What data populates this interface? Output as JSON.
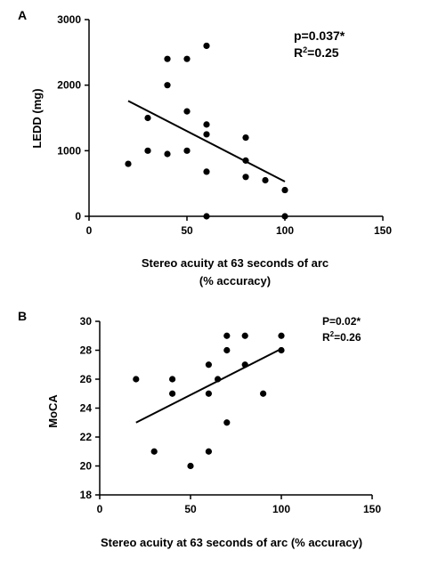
{
  "chart_data": [
    {
      "type": "scatter",
      "panel_label": "A",
      "xlabel_lines": [
        "Stereo acuity at 63 seconds of arc",
        "(% accuracy)"
      ],
      "ylabel": "LEDD (mg)",
      "xlim": [
        0,
        150
      ],
      "ylim": [
        0,
        3000
      ],
      "xticks": [
        0,
        50,
        100,
        150
      ],
      "yticks": [
        0,
        1000,
        2000,
        3000
      ],
      "annotations": {
        "p_value": "p=0.037*",
        "r2_prefix": "R",
        "r2_sup": "2",
        "r2_value": "=0.25"
      },
      "points": [
        {
          "x": 20,
          "y": 800
        },
        {
          "x": 30,
          "y": 1500
        },
        {
          "x": 30,
          "y": 1000
        },
        {
          "x": 40,
          "y": 2400
        },
        {
          "x": 40,
          "y": 2000
        },
        {
          "x": 40,
          "y": 950
        },
        {
          "x": 50,
          "y": 2400
        },
        {
          "x": 50,
          "y": 1600
        },
        {
          "x": 50,
          "y": 1000
        },
        {
          "x": 60,
          "y": 2600
        },
        {
          "x": 60,
          "y": 1400
        },
        {
          "x": 60,
          "y": 1250
        },
        {
          "x": 60,
          "y": 680
        },
        {
          "x": 60,
          "y": 0
        },
        {
          "x": 80,
          "y": 1200
        },
        {
          "x": 80,
          "y": 850
        },
        {
          "x": 80,
          "y": 600
        },
        {
          "x": 90,
          "y": 550
        },
        {
          "x": 100,
          "y": 400
        },
        {
          "x": 100,
          "y": 0
        }
      ],
      "fit_line": {
        "x": [
          20,
          100
        ],
        "y": [
          1760,
          530
        ]
      }
    },
    {
      "type": "scatter",
      "panel_label": "B",
      "xlabel_lines": [
        "Stereo acuity at 63 seconds of arc (% accuracy)"
      ],
      "ylabel": "MoCA",
      "xlim": [
        0,
        150
      ],
      "ylim": [
        18,
        30
      ],
      "xticks": [
        0,
        50,
        100,
        150
      ],
      "yticks": [
        18,
        20,
        22,
        24,
        26,
        28,
        30
      ],
      "annotations": {
        "p_value": "P=0.02*",
        "r2_prefix": "R",
        "r2_sup": "2",
        "r2_value": "=0.26"
      },
      "points": [
        {
          "x": 20,
          "y": 26
        },
        {
          "x": 30,
          "y": 21
        },
        {
          "x": 40,
          "y": 26
        },
        {
          "x": 40,
          "y": 25
        },
        {
          "x": 50,
          "y": 20
        },
        {
          "x": 60,
          "y": 27
        },
        {
          "x": 60,
          "y": 25
        },
        {
          "x": 60,
          "y": 21
        },
        {
          "x": 65,
          "y": 26
        },
        {
          "x": 70,
          "y": 29
        },
        {
          "x": 70,
          "y": 28
        },
        {
          "x": 70,
          "y": 23
        },
        {
          "x": 80,
          "y": 29
        },
        {
          "x": 80,
          "y": 27
        },
        {
          "x": 90,
          "y": 25
        },
        {
          "x": 100,
          "y": 29
        },
        {
          "x": 100,
          "y": 28
        }
      ],
      "fit_line": {
        "x": [
          20,
          100
        ],
        "y": [
          23.0,
          28.1
        ]
      }
    }
  ]
}
